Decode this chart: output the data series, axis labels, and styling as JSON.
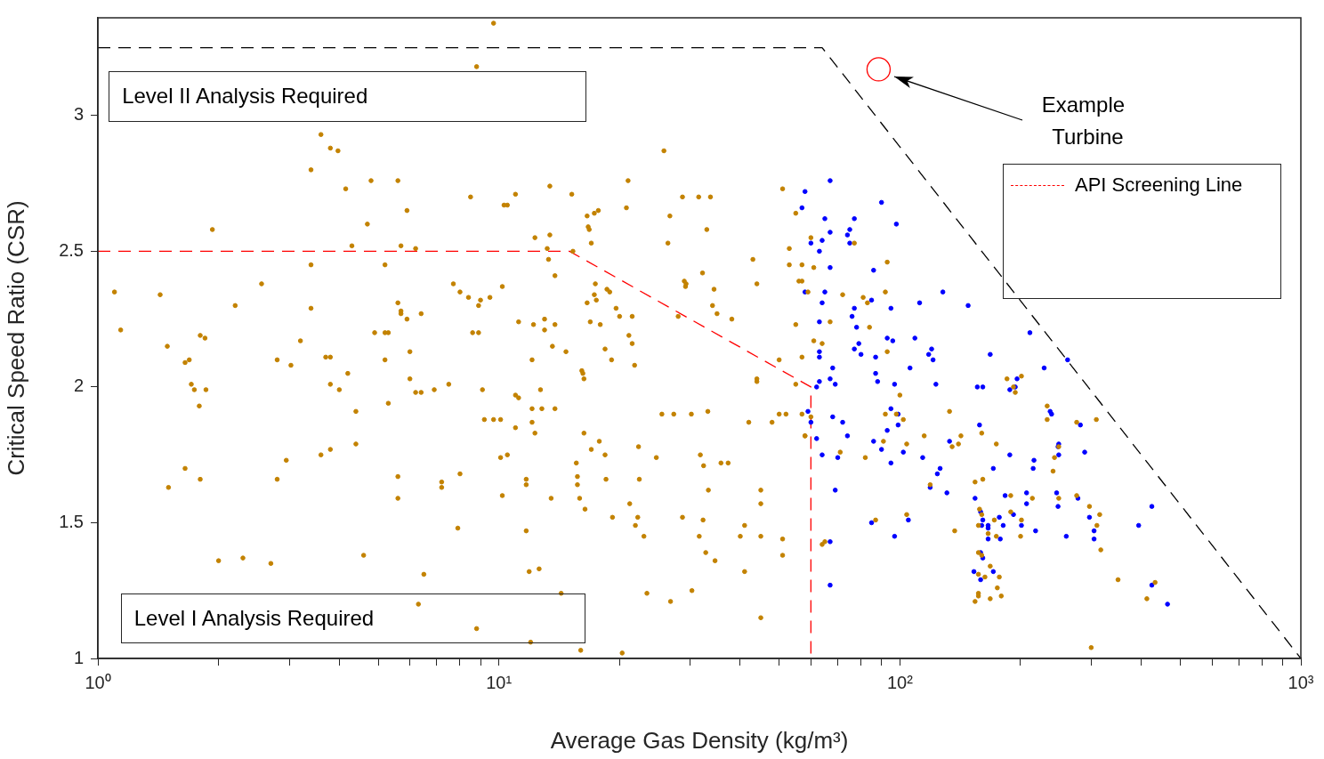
{
  "chart_data": {
    "type": "scatter",
    "xlabel": "Average Gas Density (kg/m³)",
    "ylabel": "Critical Speed Ratio (CSR)",
    "log": "x",
    "xlim": [
      1,
      1000
    ],
    "ylim": [
      1,
      3.36
    ],
    "xticks": [
      {
        "value": 1,
        "label": "10⁰"
      },
      {
        "value": 2,
        "label": null
      },
      {
        "value": 3,
        "label": null
      },
      {
        "value": 4,
        "label": null
      },
      {
        "value": 5,
        "label": null
      },
      {
        "value": 6,
        "label": null
      },
      {
        "value": 7,
        "label": null
      },
      {
        "value": 8,
        "label": null
      },
      {
        "value": 9,
        "label": null
      },
      {
        "value": 10,
        "label": "10¹"
      },
      {
        "value": 20,
        "label": null
      },
      {
        "value": 30,
        "label": null
      },
      {
        "value": 40,
        "label": null
      },
      {
        "value": 50,
        "label": null
      },
      {
        "value": 60,
        "label": null
      },
      {
        "value": 70,
        "label": null
      },
      {
        "value": 80,
        "label": null
      },
      {
        "value": 90,
        "label": null
      },
      {
        "value": 100,
        "label": "10²"
      },
      {
        "value": 200,
        "label": null
      },
      {
        "value": 300,
        "label": null
      },
      {
        "value": 400,
        "label": null
      },
      {
        "value": 500,
        "label": null
      },
      {
        "value": 600,
        "label": null
      },
      {
        "value": 700,
        "label": null
      },
      {
        "value": 800,
        "label": null
      },
      {
        "value": 900,
        "label": null
      },
      {
        "value": 1000,
        "label": "10³"
      }
    ],
    "yticks": [
      1,
      1.5,
      2,
      2.5,
      3
    ],
    "marker": "circle",
    "legend": "top right",
    "annotations": [
      "Level II Analysis Required",
      "Level I Analysis Required",
      "Example Turbine"
    ],
    "series": [
      {
        "color": "#c38200",
        "x": [
          1.1,
          1.14,
          1.43,
          1.49,
          1.5,
          1.65,
          1.65,
          1.69,
          1.71,
          1.74,
          1.79,
          1.8,
          1.8,
          1.85,
          1.86,
          1.93,
          2.0,
          2.2,
          2.3,
          2.56,
          2.7,
          2.8,
          2.8,
          2.95,
          3.03,
          3.2,
          3.4,
          3.4,
          3.4,
          3.6,
          3.6,
          3.7,
          3.8,
          3.8,
          3.8,
          3.8,
          3.97,
          4.0,
          4.15,
          4.2,
          4.3,
          4.4,
          4.4,
          4.6,
          4.7,
          4.8,
          4.9,
          5.2,
          5.2,
          5.2,
          5.3,
          5.3,
          5.6,
          5.6,
          5.6,
          5.6,
          5.7,
          5.7,
          5.7,
          5.9,
          5.9,
          6.0,
          6.0,
          6.2,
          6.2,
          6.3,
          6.4,
          6.4,
          6.5,
          6.9,
          7.2,
          7.2,
          7.5,
          7.7,
          7.9,
          8.0,
          8.0,
          8.4,
          8.5,
          8.6,
          8.8,
          8.8,
          8.9,
          8.9,
          9.0,
          9.1,
          9.2,
          9.5,
          9.7,
          9.7,
          10.2,
          10.1,
          10.1,
          10.2,
          10.3,
          10.5,
          10.5,
          11.0,
          11.0,
          11.0,
          11.2,
          11.2,
          11.7,
          11.7,
          11.7,
          11.9,
          12.0,
          12.1,
          12.1,
          12.1,
          12.2,
          12.3,
          12.3,
          12.6,
          12.7,
          12.8,
          13.0,
          13.0,
          13.2,
          13.3,
          13.4,
          13.4,
          13.5,
          13.6,
          13.8,
          13.8,
          13.8,
          14.3,
          14.7,
          15.2,
          15.3,
          15.6,
          15.7,
          15.7,
          15.9,
          16.0,
          16.1,
          16.2,
          16.3,
          16.3,
          16.4,
          16.6,
          16.6,
          16.7,
          16.8,
          16.9,
          17.0,
          17.0,
          17.3,
          17.3,
          17.4,
          17.5,
          17.7,
          17.8,
          17.9,
          18.4,
          18.4,
          18.5,
          18.6,
          18.9,
          19.1,
          19.2,
          19.6,
          20.0,
          20.3,
          21.0,
          20.8,
          21.1,
          21.2,
          21.5,
          21.5,
          21.8,
          21.9,
          22.2,
          22.3,
          22.4,
          23.0,
          23.4,
          24.7,
          25.5,
          25.8,
          26.4,
          26.7,
          26.8,
          27.3,
          28.0,
          28.7,
          28.7,
          29.0,
          29.2,
          29.3,
          30.2,
          30.3,
          31.5,
          31.6,
          31.8,
          32.2,
          32.3,
          32.4,
          32.8,
          33.0,
          33.2,
          33.3,
          33.7,
          34.1,
          34.4,
          34.6,
          35.0,
          35.8,
          37.3,
          38.1,
          40,
          41,
          41,
          42,
          43,
          44,
          44,
          44,
          45,
          45,
          45,
          45,
          48,
          50,
          50,
          51,
          51,
          51,
          52,
          53,
          53,
          55,
          55,
          56,
          57,
          58,
          59,
          61,
          55,
          57,
          57,
          60,
          77,
          93,
          72,
          81,
          83,
          92,
          84,
          67,
          64,
          61,
          93,
          60,
          58,
          57,
          92,
          91,
          82,
          71,
          87,
          65,
          64,
          100,
          98,
          102,
          104,
          115,
          119,
          104,
          133,
          135,
          140,
          142,
          137,
          154,
          160,
          161,
          158,
          160,
          157,
          166,
          174,
          157,
          160,
          168,
          157,
          163,
          177,
          175,
          157,
          157,
          154,
          168,
          179,
          172,
          174,
          189,
          189,
          201,
          200,
          214,
          185,
          201,
          192,
          194,
          233,
          233,
          241,
          243,
          249,
          249,
          276,
          276,
          297,
          309,
          315,
          310,
          317,
          350,
          413,
          433,
          300
        ],
        "values": [
          2.35,
          2.21,
          2.34,
          2.15,
          1.63,
          2.09,
          1.7,
          2.1,
          2.01,
          1.99,
          1.93,
          2.19,
          1.66,
          2.18,
          1.99,
          2.58,
          1.36,
          2.3,
          1.37,
          2.38,
          1.35,
          2.1,
          1.66,
          1.73,
          2.08,
          2.17,
          2.8,
          2.45,
          2.29,
          2.93,
          1.75,
          2.11,
          2.88,
          1.77,
          2.11,
          2.01,
          2.87,
          1.99,
          2.73,
          2.05,
          2.52,
          1.79,
          1.91,
          1.38,
          2.6,
          2.76,
          2.2,
          2.45,
          2.2,
          2.1,
          1.94,
          2.2,
          2.76,
          1.67,
          1.59,
          2.31,
          2.27,
          2.28,
          2.52,
          2.25,
          2.65,
          2.03,
          2.13,
          1.98,
          2.51,
          1.2,
          1.98,
          2.27,
          1.31,
          1.99,
          1.65,
          1.63,
          2.01,
          2.38,
          1.48,
          1.68,
          2.35,
          2.33,
          2.7,
          2.2,
          3.18,
          1.11,
          2.3,
          2.2,
          2.32,
          1.99,
          1.88,
          2.33,
          3.34,
          1.88,
          2.37,
          1.88,
          1.74,
          1.6,
          2.67,
          2.67,
          1.75,
          1.85,
          2.71,
          1.97,
          2.24,
          1.96,
          1.66,
          1.64,
          1.47,
          1.32,
          1.06,
          1.87,
          1.92,
          2.1,
          2.23,
          2.55,
          1.83,
          1.33,
          1.99,
          1.92,
          2.25,
          2.21,
          2.51,
          2.47,
          2.56,
          2.74,
          1.59,
          2.15,
          2.23,
          2.41,
          1.92,
          1.24,
          2.13,
          2.71,
          2.5,
          1.72,
          1.67,
          1.64,
          1.59,
          1.03,
          2.06,
          2.05,
          2.03,
          1.83,
          1.55,
          2.63,
          2.31,
          2.59,
          2.58,
          2.24,
          1.77,
          2.53,
          2.64,
          2.34,
          2.38,
          2.32,
          2.65,
          1.8,
          2.23,
          2.14,
          1.75,
          1.66,
          2.36,
          2.35,
          2.1,
          1.52,
          2.29,
          2.26,
          1.02,
          2.76,
          2.66,
          2.19,
          1.57,
          2.16,
          2.26,
          2.08,
          1.49,
          1.52,
          1.78,
          1.66,
          1.45,
          1.24,
          1.74,
          1.9,
          2.87,
          2.53,
          2.63,
          1.21,
          1.9,
          2.26,
          2.7,
          1.52,
          2.39,
          2.37,
          2.38,
          1.9,
          1.25,
          2.7,
          1.45,
          1.75,
          2.42,
          1.51,
          1.71,
          1.39,
          2.58,
          1.91,
          1.62,
          2.7,
          2.3,
          2.36,
          1.36,
          2.27,
          1.72,
          1.72,
          2.25,
          1.45,
          1.49,
          1.32,
          1.87,
          2.47,
          2.38,
          2.03,
          2.02,
          1.62,
          1.15,
          1.57,
          1.45,
          1.87,
          1.9,
          2.1,
          1.44,
          1.38,
          2.73,
          1.9,
          2.51,
          2.45,
          2.23,
          2.01,
          2.39,
          2.11,
          1.82,
          2.35,
          2.44,
          2.64,
          2.45,
          2.39,
          2.55,
          2.53,
          2.46,
          2.34,
          2.33,
          2.31,
          2.35,
          2.22,
          2.24,
          2.16,
          2.17,
          2.13,
          1.89,
          1.82,
          1.9,
          1.9,
          1.8,
          1.74,
          1.76,
          1.51,
          1.43,
          1.42,
          1.97,
          1.9,
          1.88,
          1.79,
          1.82,
          1.64,
          1.53,
          1.91,
          1.78,
          1.79,
          1.82,
          1.47,
          1.65,
          1.83,
          1.66,
          1.55,
          1.53,
          1.49,
          1.46,
          1.79,
          1.39,
          1.38,
          1.34,
          1.31,
          1.3,
          1.3,
          1.26,
          1.24,
          1.23,
          1.21,
          1.22,
          1.23,
          1.51,
          1.45,
          1.6,
          1.54,
          1.51,
          1.45,
          1.59,
          2.03,
          2.04,
          2.0,
          1.98,
          1.93,
          1.88,
          1.69,
          1.74,
          1.78,
          1.59,
          1.87,
          1.6,
          1.56,
          1.88,
          1.53,
          1.49,
          1.4,
          1.29,
          1.22,
          1.28,
          1.04
        ]
      },
      {
        "color": "#0000ff",
        "x": [
          58,
          67,
          57,
          65,
          77,
          90,
          98,
          75,
          74,
          75,
          60,
          64,
          67,
          63,
          67,
          86,
          58,
          65,
          64,
          77,
          76,
          78,
          85,
          95,
          63,
          79,
          77,
          80,
          93,
          96,
          63,
          63,
          87,
          68,
          87,
          88,
          97,
          63,
          62,
          67,
          69,
          59,
          60,
          68,
          72,
          74,
          62,
          64,
          70,
          69,
          95,
          99,
          99,
          93,
          86,
          90,
          95,
          85,
          97,
          67,
          67,
          128,
          112,
          148,
          109,
          120,
          118,
          121,
          168,
          211,
          262,
          229,
          106,
          123,
          156,
          161,
          188,
          196,
          194,
          158,
          237,
          239,
          282,
          102,
          114,
          133,
          126,
          124,
          119,
          131,
          171,
          188,
          215,
          216,
          249,
          248,
          249,
          289,
          154,
          183,
          207,
          207,
          246,
          248,
          278,
          425,
          105,
          159,
          161,
          160,
          166,
          166,
          177,
          181,
          201,
          192,
          166,
          178,
          218,
          260,
          297,
          305,
          305,
          394,
          159,
          161,
          153,
          171,
          159,
          425,
          465
        ],
        "values": [
          2.72,
          2.76,
          2.66,
          2.62,
          2.62,
          2.68,
          2.6,
          2.58,
          2.56,
          2.53,
          2.53,
          2.54,
          2.57,
          2.5,
          2.44,
          2.43,
          2.35,
          2.35,
          2.31,
          2.29,
          2.26,
          2.22,
          2.32,
          2.29,
          2.24,
          2.16,
          2.14,
          2.12,
          2.18,
          2.17,
          2.13,
          2.11,
          2.11,
          2.07,
          2.05,
          2.02,
          2.01,
          2.02,
          2.0,
          2.03,
          2.01,
          1.91,
          1.87,
          1.89,
          1.87,
          1.82,
          1.81,
          1.75,
          1.74,
          1.62,
          1.92,
          1.9,
          1.86,
          1.84,
          1.8,
          1.77,
          1.72,
          1.5,
          1.45,
          1.43,
          1.27,
          2.35,
          2.31,
          2.3,
          2.18,
          2.14,
          2.12,
          2.1,
          2.12,
          2.2,
          2.1,
          2.07,
          2.07,
          2.01,
          2.0,
          2.0,
          1.99,
          2.03,
          2.0,
          1.86,
          1.91,
          1.9,
          1.86,
          1.76,
          1.74,
          1.8,
          1.7,
          1.68,
          1.63,
          1.61,
          1.7,
          1.75,
          1.7,
          1.73,
          1.79,
          1.78,
          1.75,
          1.76,
          1.59,
          1.6,
          1.61,
          1.57,
          1.61,
          1.56,
          1.59,
          1.56,
          1.51,
          1.54,
          1.51,
          1.49,
          1.49,
          1.48,
          1.52,
          1.49,
          1.49,
          1.53,
          1.44,
          1.44,
          1.47,
          1.45,
          1.52,
          1.47,
          1.44,
          1.49,
          1.39,
          1.37,
          1.32,
          1.32,
          1.29,
          1.27,
          1.2
        ]
      },
      {
        "type": "line",
        "name": "API Screening Line",
        "color": "#ff0000",
        "line_style": "dashed",
        "marker": "none",
        "x": [
          1,
          15,
          60,
          60
        ],
        "values": [
          2.5,
          2.5,
          2.0,
          1
        ]
      },
      {
        "type": "line",
        "color": "#000000",
        "line_style": "dashed",
        "marker": "none",
        "x": [
          1,
          64,
          1000
        ],
        "values": [
          3.25,
          3.25,
          1
        ]
      },
      {
        "color": "#ff0000",
        "x": [
          88.5
        ],
        "values": [
          3.17
        ]
      }
    ]
  }
}
